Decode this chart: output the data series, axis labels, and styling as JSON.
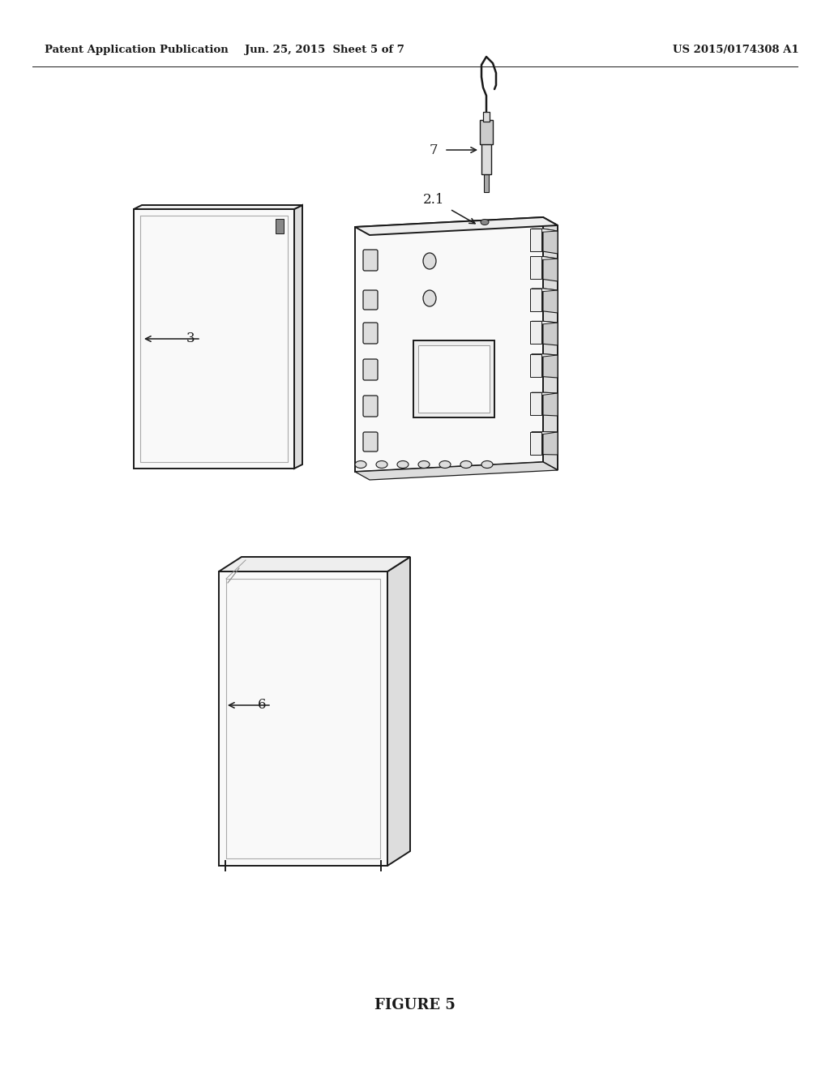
{
  "background_color": "#ffffff",
  "header_left": "Patent Application Publication",
  "header_mid": "Jun. 25, 2015  Sheet 5 of 7",
  "header_right": "US 2015/0174308 A1",
  "footer_label": "FIGURE 5",
  "label_3": "3",
  "label_21": "2.1",
  "label_7": "7",
  "label_6": "6",
  "line_color": "#1a1a1a",
  "face_white": "#f9f9f9",
  "face_light": "#eeeeee",
  "face_mid": "#dddddd",
  "face_dark": "#cccccc"
}
